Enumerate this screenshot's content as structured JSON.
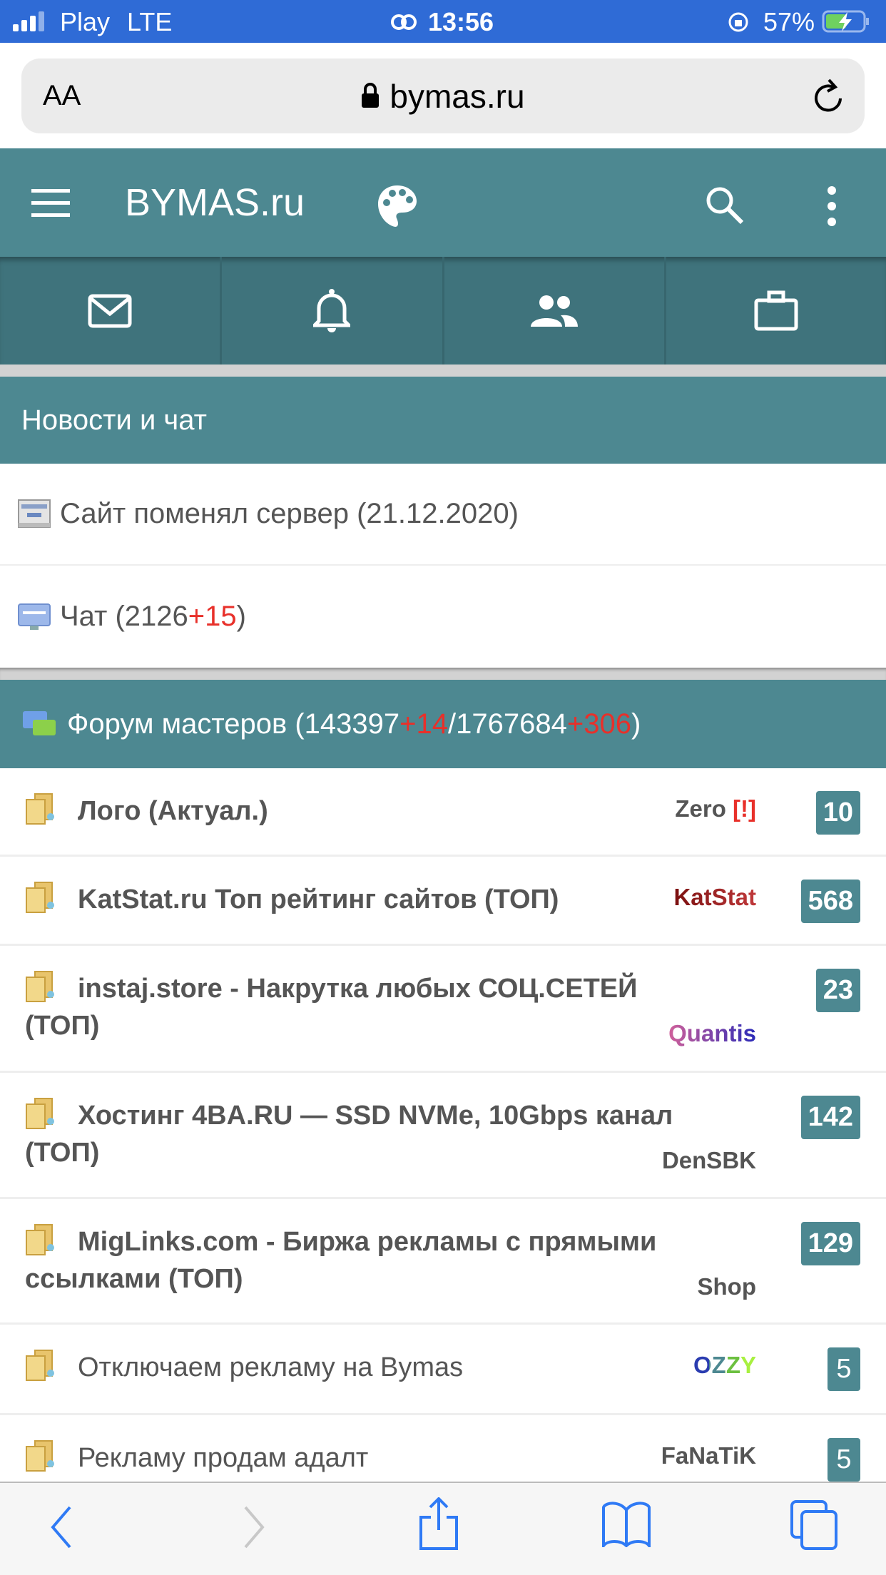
{
  "status_bar": {
    "carrier": "Play",
    "network": "LTE",
    "time": "13:56",
    "battery": "57%"
  },
  "browser": {
    "text_size": "AA",
    "url": "bymas.ru"
  },
  "header": {
    "title": "BYMAS.ru"
  },
  "news": {
    "title": "Новости и чат",
    "items": [
      {
        "text": "Сайт поменял сервер (21.12.2020)"
      },
      {
        "text": "Чат (2126 ",
        "delta": "+15",
        "close": ")"
      }
    ]
  },
  "forum": {
    "title_pre": "Форум мастеров (143397",
    "d1": "+14",
    "mid": "/1767684",
    "d2": "+306",
    "close": ")",
    "topics": [
      {
        "title": "Лого (Актуал.)",
        "nick": "Zero",
        "flag": "[!]",
        "count": "10"
      },
      {
        "title": "KatStat.ru Топ рейтинг сайтов (ТОП)",
        "nick": "KatStat",
        "count": "568"
      },
      {
        "title": "instaj.store - Накрутка любых СОЦ.СЕТЕЙ (ТОП)",
        "nick": "Quantis",
        "count": "23"
      },
      {
        "title": "Хостинг 4BA.RU — SSD NVMe, 10Gbps канал (ТОП)",
        "nick": "DenSBK",
        "count": "142"
      },
      {
        "title": "MigLinks.com - Биржа рекламы с прямыми ссылками (ТОП)",
        "nick": "Shop",
        "count": "129"
      },
      {
        "title": "Отключаем рекламу на Bymas",
        "nick": "OZZY",
        "count": "5"
      },
      {
        "title": "Рекламу продам адалт",
        "nick": "FaNaTiK",
        "count": "5"
      }
    ]
  },
  "colors": {
    "teal": "#4d8891",
    "teal_dark": "#3f737c",
    "status_blue": "#2f6bd6",
    "delta_red": "#e8302a",
    "ios_blue": "#2f7af5"
  }
}
